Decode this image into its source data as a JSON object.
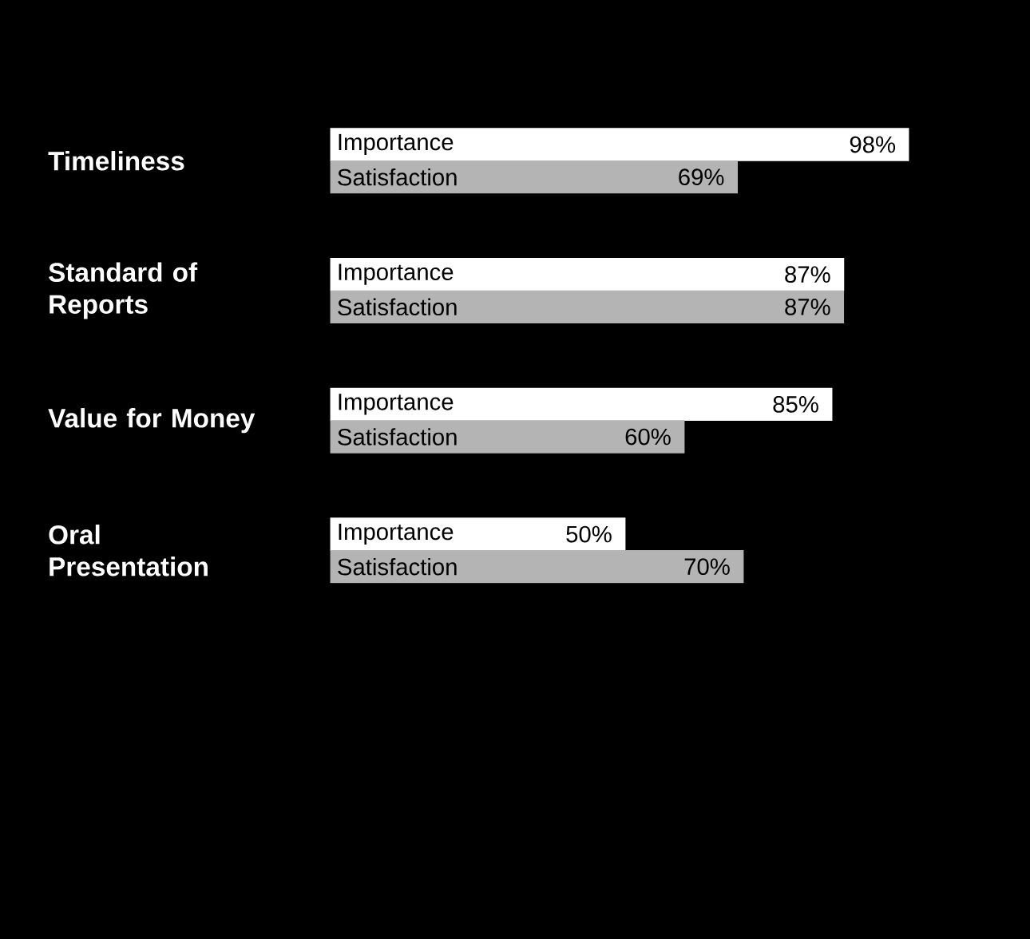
{
  "chart_data": {
    "type": "bar",
    "orientation": "horizontal",
    "categories": [
      "Timeliness",
      "Standard of Reports",
      "Value for Money",
      "Oral Presentation"
    ],
    "series": [
      {
        "name": "Importance",
        "color": "#ffffff",
        "values": [
          98,
          87,
          85,
          50
        ],
        "value_labels": [
          "98%",
          "87%",
          "85%",
          "50%"
        ]
      },
      {
        "name": "Satisfaction",
        "color": "#b4b4b4",
        "values": [
          69,
          87,
          60,
          70
        ],
        "value_labels": [
          "69%",
          "87%",
          "60%",
          "70%"
        ]
      }
    ],
    "tick_labels": "y"
  }
}
